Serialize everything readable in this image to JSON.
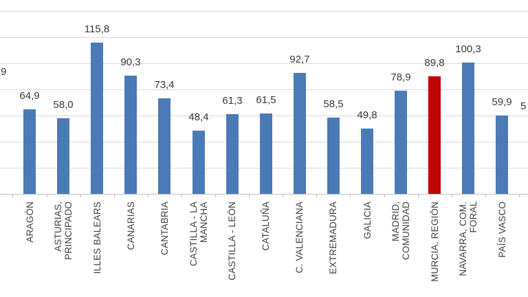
{
  "chart_data": {
    "type": "bar",
    "title": "",
    "categories": [
      "ARAGÓN",
      "ASTURIAS,\nPRINCIPADO",
      "ILLES BALEARS",
      "CANARIAS",
      "CANTABRIA",
      "CASTILLA - LA\nMANCHA",
      "CASTILLA - LEÓN",
      "CATALUÑA",
      "C. VALENCIANA",
      "EXTREMADURA",
      "GALICIA",
      "MADRID,\nCOMUNIDAD",
      "MURCIA, REGIÓN",
      "NAVARRA, COM.\nFORAL",
      "PAÍS VASCO"
    ],
    "values": [
      64.9,
      58.0,
      115.8,
      90.3,
      73.4,
      48.4,
      61.3,
      61.5,
      92.7,
      58.5,
      49.8,
      78.9,
      89.8,
      100.3,
      59.9
    ],
    "values_display": [
      "64,9",
      "58,0",
      "115,8",
      "90,3",
      "73,4",
      "48,4",
      "61,3",
      "61,5",
      "92,7",
      "58,5",
      "49,8",
      "78,9",
      "89,8",
      "100,3",
      "59,9"
    ],
    "highlight_index": 12,
    "highlight_category": "MURCIA, REGIÓN",
    "bar_color": "#4b7bb6",
    "highlight_color": "#c00505",
    "gridline_color": "#d9d9d9",
    "axis_color": "#bfbfbf",
    "ylim": [
      0,
      140
    ],
    "gridline_step": 20,
    "grid": "horizontal",
    "legend": "none",
    "xlabel": "",
    "ylabel": "",
    "edge_fragments": {
      "left_value_fragment": "9",
      "right_value_fragment": "5"
    }
  }
}
